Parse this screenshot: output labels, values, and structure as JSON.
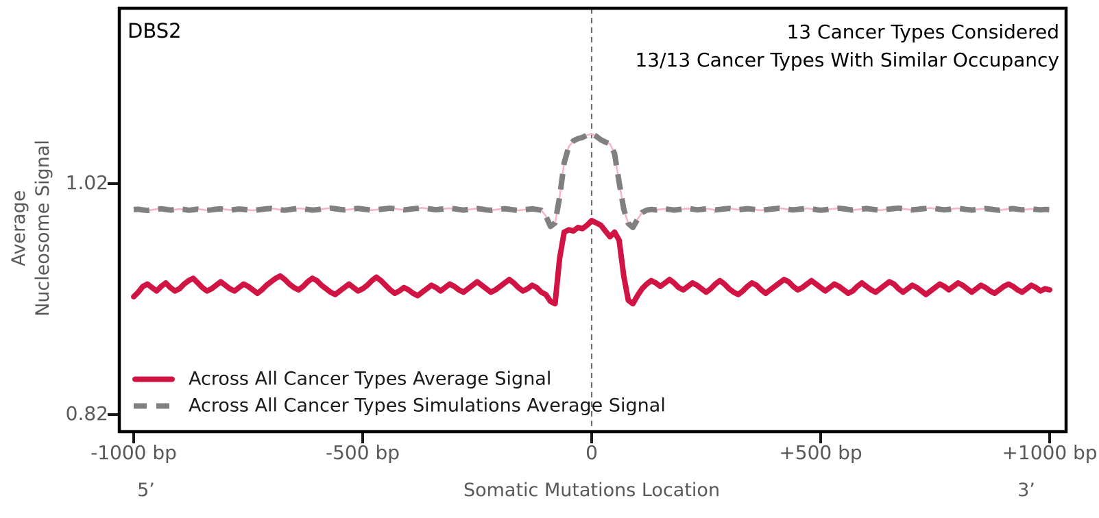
{
  "title": "DBS2",
  "annotation": {
    "line1": "13 Cancer Types Considered",
    "line2": "13/13 Cancer Types With Similar Occupancy"
  },
  "y_axis": {
    "label_line1": "Average",
    "label_line2": "Nucleosome Signal",
    "tick_labels": [
      "1.02",
      "0.82"
    ],
    "tick_values": [
      1.02,
      0.82
    ]
  },
  "x_axis": {
    "label": "Somatic Mutations Location",
    "left_end_label": "5’",
    "right_end_label": "3’",
    "tick_labels": [
      "-1000 bp",
      "-500 bp",
      "0",
      "+500 bp",
      "+1000 bp"
    ],
    "tick_values": [
      -1000,
      -500,
      0,
      500,
      1000
    ]
  },
  "legend": {
    "items": [
      {
        "label": "Across All Cancer Types Average Signal",
        "color": "#d01545",
        "style": "solid"
      },
      {
        "label": "Across All Cancer Types Simulations Average Signal",
        "color": "#808080",
        "style": "dashed"
      }
    ]
  },
  "colors": {
    "real_signal": "#d01545",
    "simulations_signal": "#808080",
    "simulations_underlay": "#f7b6c6",
    "axis_text": "#595959",
    "axes_edge": "#000000",
    "center_line": "#6e6e6e"
  },
  "chart_data": {
    "type": "line",
    "title": "DBS2",
    "xlabel": "Somatic Mutations Location",
    "ylabel": "Average Nucleosome Signal",
    "xlim": [
      -1000,
      1000
    ],
    "ylim": [
      0.804,
      1.1731
    ],
    "x_start": -1000,
    "x_step": 10,
    "vline_x": 0,
    "grid": false,
    "legend_position": "lower left",
    "series": [
      {
        "name": "Across All Cancer Types Average Signal",
        "color": "#d01545",
        "dash": "solid",
        "values": [
          0.922,
          0.926,
          0.931,
          0.933,
          0.93,
          0.927,
          0.931,
          0.934,
          0.93,
          0.927,
          0.929,
          0.933,
          0.936,
          0.938,
          0.934,
          0.93,
          0.927,
          0.929,
          0.932,
          0.935,
          0.932,
          0.929,
          0.927,
          0.93,
          0.933,
          0.931,
          0.928,
          0.925,
          0.928,
          0.932,
          0.935,
          0.938,
          0.94,
          0.937,
          0.933,
          0.93,
          0.928,
          0.931,
          0.935,
          0.938,
          0.936,
          0.932,
          0.929,
          0.926,
          0.924,
          0.927,
          0.93,
          0.933,
          0.93,
          0.927,
          0.929,
          0.932,
          0.936,
          0.939,
          0.936,
          0.932,
          0.928,
          0.925,
          0.927,
          0.93,
          0.928,
          0.925,
          0.923,
          0.926,
          0.929,
          0.932,
          0.93,
          0.927,
          0.93,
          0.933,
          0.931,
          0.928,
          0.926,
          0.929,
          0.932,
          0.935,
          0.932,
          0.929,
          0.926,
          0.928,
          0.931,
          0.934,
          0.937,
          0.934,
          0.93,
          0.927,
          0.929,
          0.932,
          0.93,
          0.926,
          0.924,
          0.918,
          0.916,
          0.955,
          0.978,
          0.98,
          0.979,
          0.982,
          0.981,
          0.984,
          0.988,
          0.986,
          0.984,
          0.979,
          0.974,
          0.978,
          0.971,
          0.94,
          0.919,
          0.916,
          0.923,
          0.929,
          0.933,
          0.936,
          0.934,
          0.931,
          0.934,
          0.937,
          0.934,
          0.93,
          0.928,
          0.931,
          0.934,
          0.932,
          0.929,
          0.926,
          0.929,
          0.933,
          0.936,
          0.933,
          0.929,
          0.926,
          0.924,
          0.927,
          0.931,
          0.934,
          0.932,
          0.928,
          0.925,
          0.928,
          0.931,
          0.934,
          0.937,
          0.935,
          0.931,
          0.928,
          0.93,
          0.933,
          0.936,
          0.933,
          0.93,
          0.927,
          0.93,
          0.933,
          0.931,
          0.928,
          0.925,
          0.927,
          0.931,
          0.934,
          0.931,
          0.928,
          0.926,
          0.929,
          0.932,
          0.935,
          0.933,
          0.929,
          0.926,
          0.929,
          0.932,
          0.93,
          0.927,
          0.924,
          0.927,
          0.93,
          0.933,
          0.931,
          0.928,
          0.931,
          0.934,
          0.932,
          0.929,
          0.926,
          0.929,
          0.932,
          0.93,
          0.927,
          0.925,
          0.928,
          0.931,
          0.933,
          0.931,
          0.928,
          0.926,
          0.929,
          0.932,
          0.93,
          0.927,
          0.929,
          0.928
        ]
      },
      {
        "name": "Across All Cancer Types Simulations Average Signal",
        "color": "#808080",
        "dash": "dashed",
        "underlay_color": "#f7b6c6",
        "values": [
          0.9975,
          0.9978,
          0.9972,
          0.9968,
          0.9973,
          0.9979,
          0.9982,
          0.9977,
          0.9971,
          0.9975,
          0.998,
          0.9976,
          0.997,
          0.9974,
          0.9979,
          0.9975,
          0.9969,
          0.9973,
          0.9978,
          0.9981,
          0.9976,
          0.9971,
          0.9975,
          0.998,
          0.9977,
          0.9972,
          0.9968,
          0.9972,
          0.9977,
          0.9982,
          0.9985,
          0.998,
          0.9974,
          0.997,
          0.9975,
          0.9981,
          0.9986,
          0.9982,
          0.9976,
          0.9971,
          0.9974,
          0.9979,
          0.9984,
          0.9988,
          0.9983,
          0.9977,
          0.9972,
          0.9976,
          0.9981,
          0.9985,
          0.998,
          0.9975,
          0.997,
          0.9974,
          0.9978,
          0.9983,
          0.9987,
          0.9982,
          0.9977,
          0.9973,
          0.9977,
          0.9982,
          0.9986,
          0.999,
          0.9985,
          0.9979,
          0.9974,
          0.9978,
          0.9983,
          0.9987,
          0.9982,
          0.9976,
          0.9971,
          0.9975,
          0.998,
          0.9984,
          0.9979,
          0.9973,
          0.9969,
          0.9974,
          0.9979,
          0.9983,
          0.9978,
          0.9972,
          0.9968,
          0.9973,
          0.9977,
          0.9981,
          0.9976,
          0.997,
          0.992,
          0.983,
          0.986,
          1.008,
          1.038,
          1.052,
          1.057,
          1.059,
          1.06,
          1.062,
          1.063,
          1.061,
          1.058,
          1.056,
          1.0545,
          1.046,
          1.021,
          0.998,
          0.9855,
          0.982,
          0.989,
          0.995,
          0.997,
          0.9976,
          0.9972,
          0.9977,
          0.9981,
          0.9976,
          0.9971,
          0.9975,
          0.998,
          0.9984,
          0.9979,
          0.9973,
          0.9977,
          0.9982,
          0.9978,
          0.9972,
          0.9976,
          0.9981,
          0.9985,
          0.998,
          0.9974,
          0.9978,
          0.9983,
          0.9979,
          0.9973,
          0.9969,
          0.9974,
          0.9978,
          0.9983,
          0.9987,
          0.9982,
          0.9976,
          0.9972,
          0.9977,
          0.9981,
          0.9986,
          0.9981,
          0.9975,
          0.997,
          0.9974,
          0.9979,
          0.9983,
          0.9987,
          0.9982,
          0.9976,
          0.9971,
          0.9975,
          0.998,
          0.9984,
          0.9979,
          0.9974,
          0.997,
          0.9975,
          0.9979,
          0.9984,
          0.9988,
          0.9983,
          0.9977,
          0.9972,
          0.9976,
          0.9981,
          0.9985,
          0.9989,
          0.9984,
          0.9978,
          0.9973,
          0.9977,
          0.9982,
          0.9986,
          0.9981,
          0.9975,
          0.9971,
          0.9976,
          0.998,
          0.9984,
          0.9979,
          0.9974,
          0.997,
          0.9975,
          0.998,
          0.9984,
          0.9978,
          0.9973,
          0.9977,
          0.9981,
          0.9977,
          0.9973,
          0.9976,
          0.9975
        ]
      }
    ]
  }
}
